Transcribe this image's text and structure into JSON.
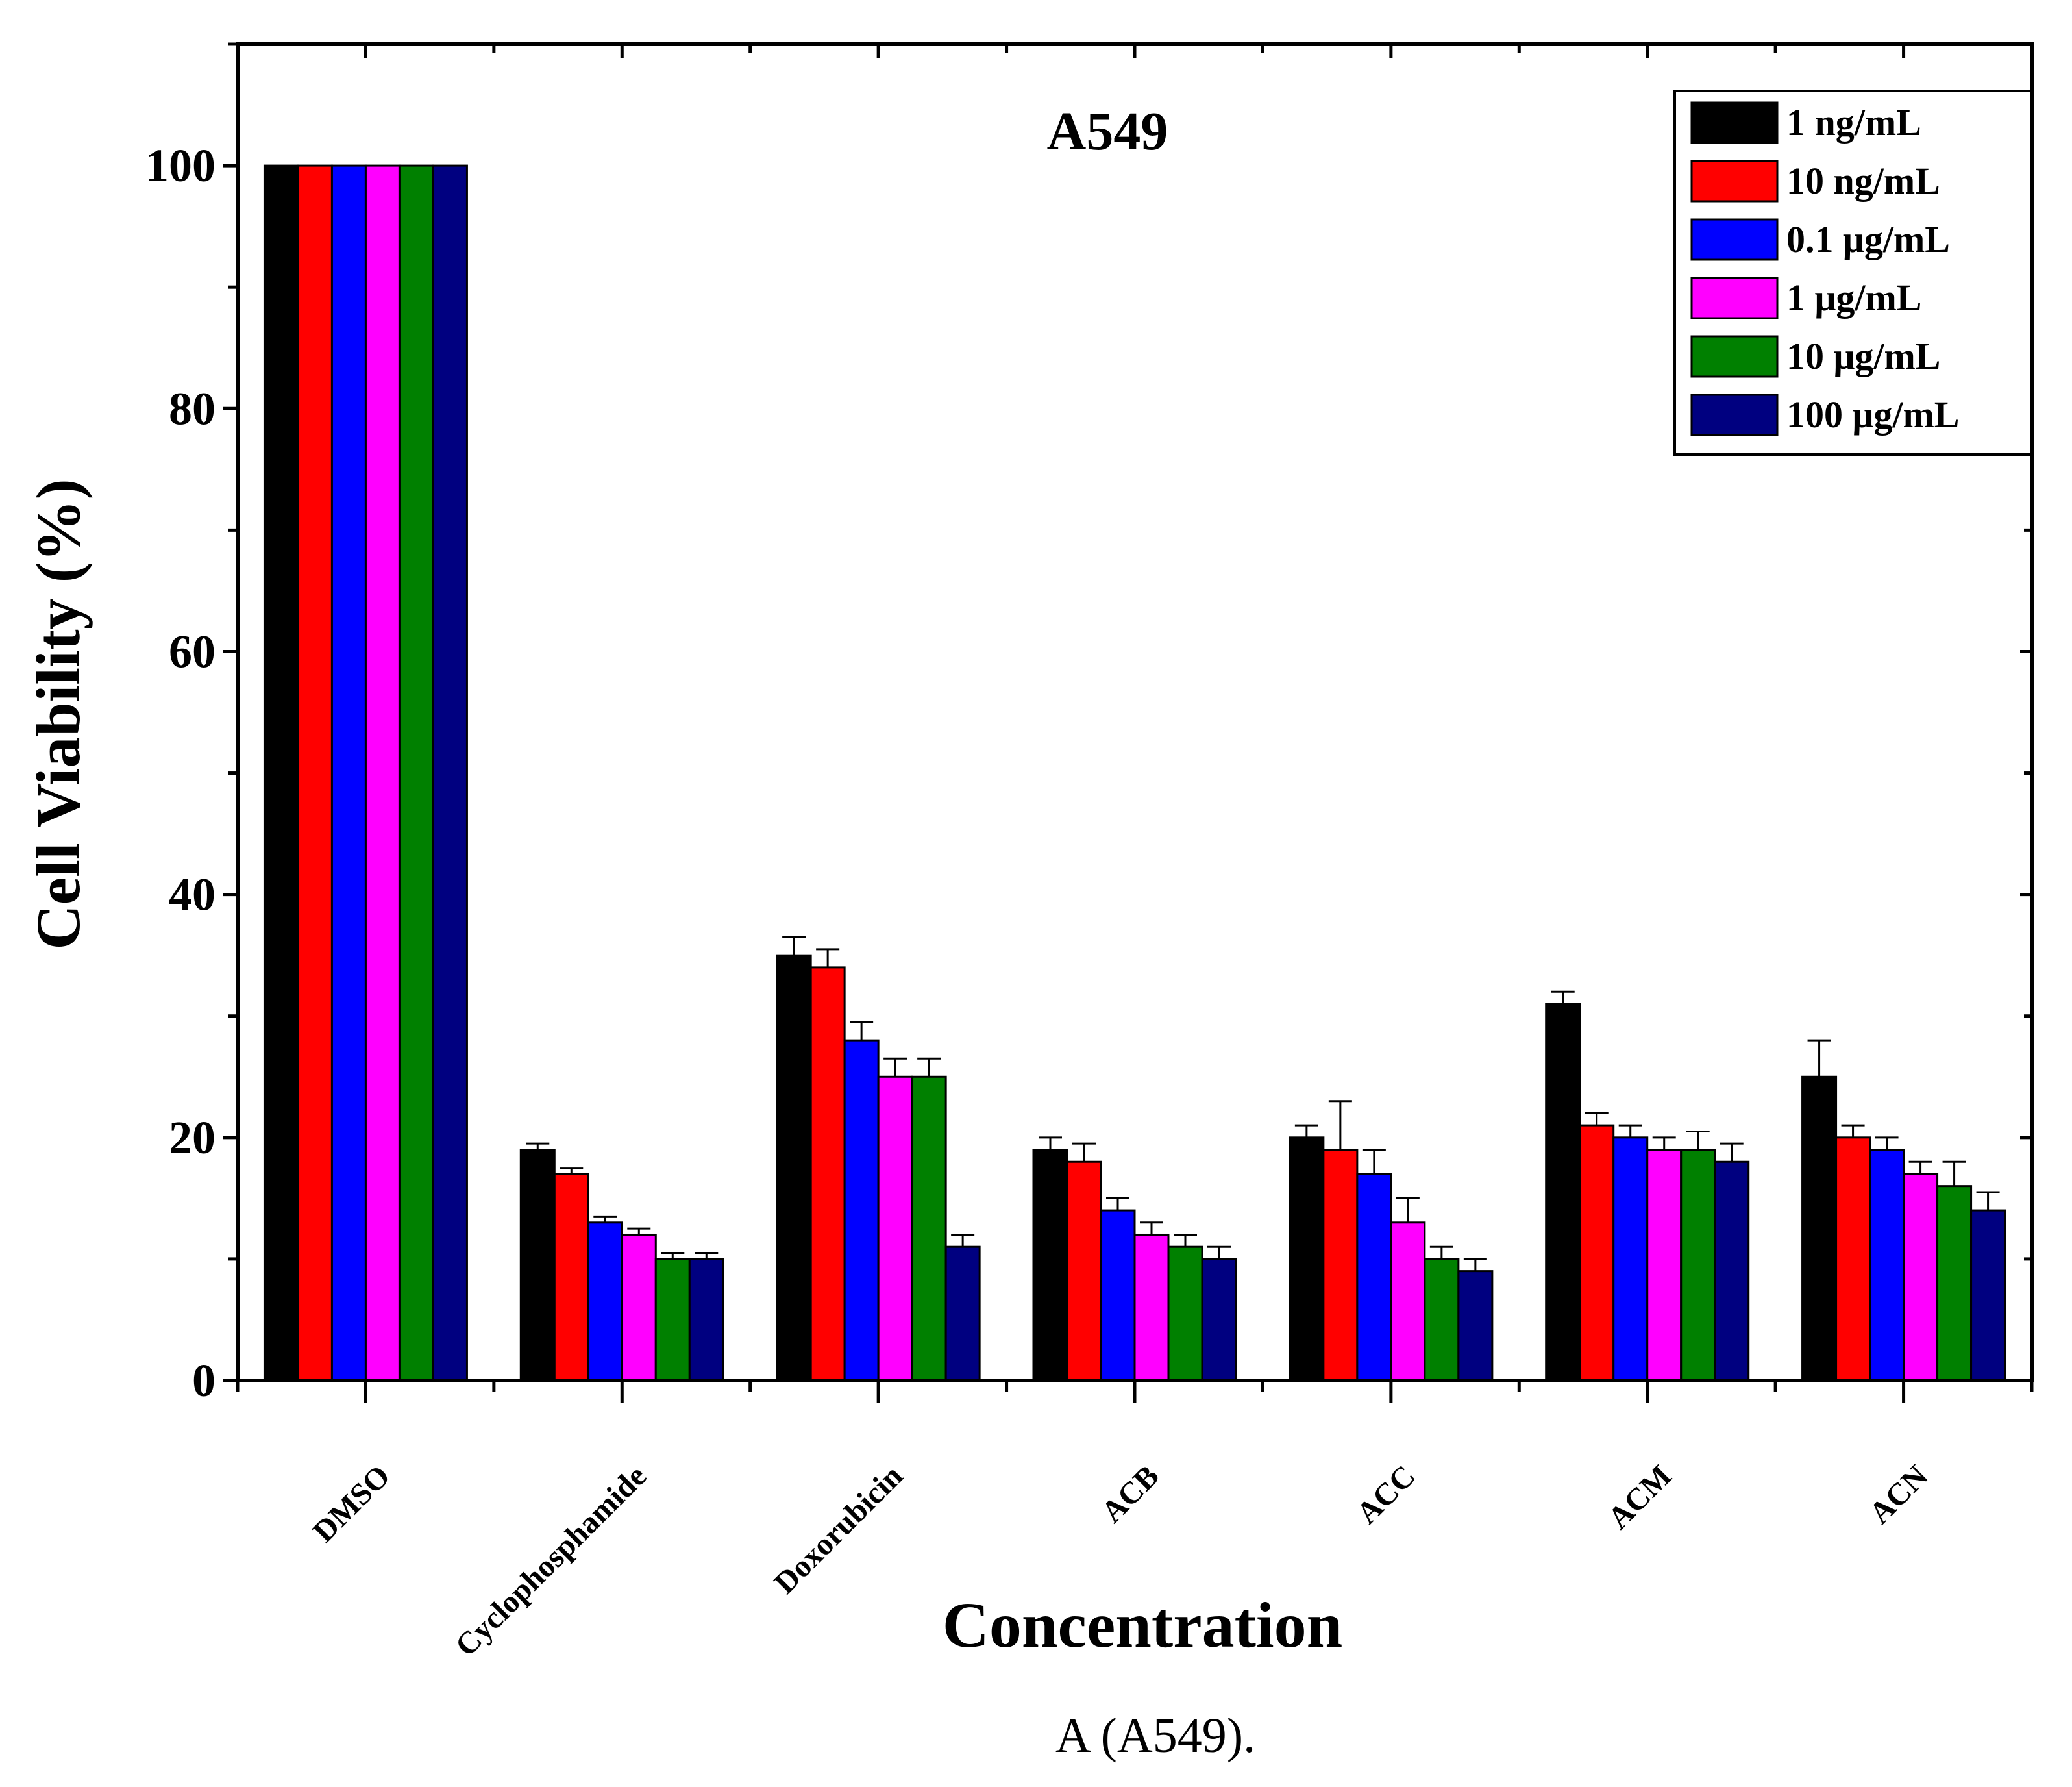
{
  "chart_data": {
    "type": "bar",
    "title": "A549",
    "xlabel": "Concentration",
    "ylabel": "Cell Viability (%)",
    "ylim": [
      0,
      110
    ],
    "yticks": [
      0,
      20,
      40,
      60,
      80,
      100
    ],
    "categories": [
      "DMSO",
      "Cyclophosphamide",
      "Doxorubicin",
      "ACB",
      "ACC",
      "ACM",
      "ACN"
    ],
    "series": [
      {
        "name": "1 ng/mL",
        "color": "#000000",
        "values": [
          100,
          19,
          35,
          19,
          20,
          31,
          25
        ],
        "errors": [
          0,
          0.5,
          1.5,
          1,
          1,
          1,
          3
        ]
      },
      {
        "name": "10 ng/mL",
        "color": "#ff0000",
        "values": [
          100,
          17,
          34,
          18,
          19,
          21,
          20
        ],
        "errors": [
          0,
          0.5,
          1.5,
          1.5,
          4,
          1,
          1
        ]
      },
      {
        "name": "0.1 μg/mL",
        "color": "#0000ff",
        "values": [
          100,
          13,
          28,
          14,
          17,
          20,
          19
        ],
        "errors": [
          0,
          0.5,
          1.5,
          1,
          2,
          1,
          1
        ]
      },
      {
        "name": "1 μg/mL",
        "color": "#ff00ff",
        "values": [
          100,
          12,
          25,
          12,
          13,
          19,
          17
        ],
        "errors": [
          0,
          0.5,
          1.5,
          1,
          2,
          1,
          1
        ]
      },
      {
        "name": "10 μg/mL",
        "color": "#008000",
        "values": [
          100,
          10,
          25,
          11,
          10,
          19,
          16
        ],
        "errors": [
          0,
          0.5,
          1.5,
          1,
          1,
          1.5,
          2
        ]
      },
      {
        "name": "100 μg/mL",
        "color": "#000080",
        "values": [
          100,
          10,
          11,
          10,
          9,
          18,
          14
        ],
        "errors": [
          0,
          0.5,
          1,
          1,
          1,
          1.5,
          1.5
        ]
      }
    ],
    "legend_position": "top-right",
    "caption": "A (A549)."
  }
}
